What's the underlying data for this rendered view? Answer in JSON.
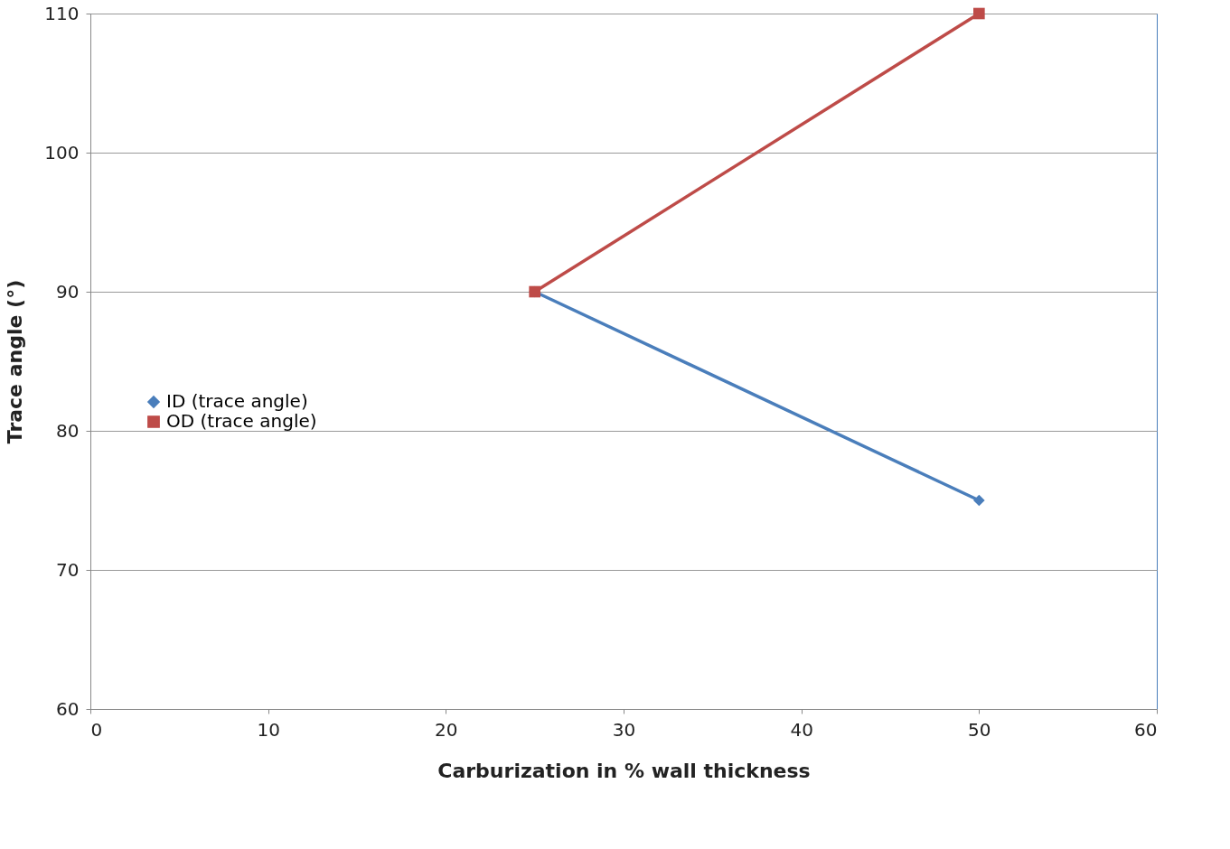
{
  "chart_data": {
    "type": "line",
    "xlabel": "Carburization in % wall thickness",
    "ylabel": "Trace angle (°)",
    "xlim": [
      0,
      60
    ],
    "xticks": [
      0,
      10,
      20,
      30,
      40,
      50,
      60
    ],
    "ylim": [
      60,
      110
    ],
    "yticks": [
      60,
      70,
      80,
      90,
      100,
      110
    ],
    "x": [
      25,
      50
    ],
    "grid": "y",
    "legend": "left",
    "line_style": "solid",
    "series": [
      {
        "name": "ID (trace angle)",
        "color": "#4a7ebb",
        "values": [
          90,
          75
        ],
        "marker": "diamond"
      },
      {
        "name": "OD (trace angle)",
        "color": "#be4b48",
        "values": [
          90,
          110
        ],
        "marker": "square"
      }
    ]
  }
}
